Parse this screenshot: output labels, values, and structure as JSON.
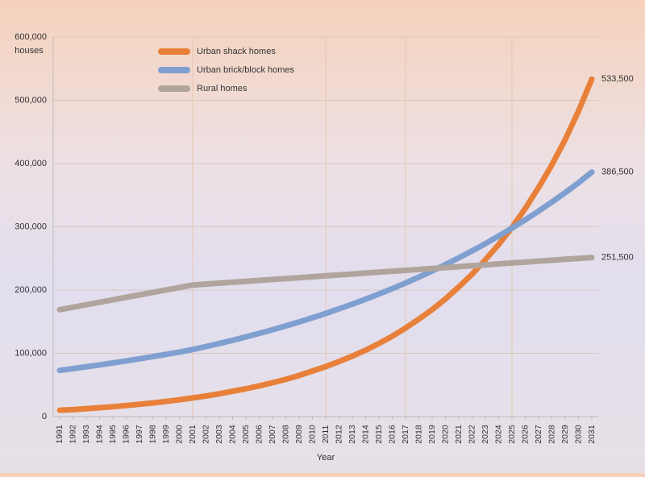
{
  "chart_data": {
    "type": "line",
    "y_axis_label": "houses",
    "x_axis_label": "Year",
    "x": [
      1991,
      1992,
      1993,
      1994,
      1995,
      1996,
      1997,
      1998,
      1999,
      2000,
      2001,
      2002,
      2003,
      2004,
      2005,
      2006,
      2007,
      2008,
      2009,
      2010,
      2011,
      2012,
      2013,
      2014,
      2015,
      2016,
      2017,
      2018,
      2019,
      2020,
      2021,
      2022,
      2023,
      2024,
      2025,
      2026,
      2027,
      2028,
      2029,
      2030,
      2031
    ],
    "xlim": [
      1991,
      2031
    ],
    "x_grid": [
      2001,
      2011,
      2017,
      2025
    ],
    "ylim": [
      0,
      600000
    ],
    "yticks": [
      0,
      {
        "value": 100000,
        "label": "100,000"
      },
      {
        "value": 200000,
        "label": "200,000"
      },
      {
        "value": 300000,
        "label": "300,000"
      },
      {
        "value": 400000,
        "label": "400,000"
      },
      {
        "value": 500000,
        "label": "500,000"
      },
      {
        "value": 600000,
        "label": "600,000"
      }
    ],
    "grid": true,
    "legend": "top-left",
    "series": [
      {
        "name": "Urban shack homes",
        "color": "#e8803a",
        "values": [
          10000,
          11000,
          12500,
          14000,
          15500,
          17500,
          19500,
          21500,
          24000,
          26500,
          29500,
          32500,
          36000,
          40000,
          44000,
          48500,
          53500,
          59000,
          65000,
          72000,
          79000,
          87000,
          95500,
          105000,
          115500,
          127000,
          140000,
          154000,
          169000,
          186000,
          205000,
          225000,
          248000,
          272000,
          299000,
          329000,
          362000,
          398000,
          438000,
          483000,
          533500
        ],
        "value_labels": [
          null,
          null,
          null,
          null,
          null,
          null,
          null,
          null,
          null,
          null,
          null,
          null,
          null,
          null,
          null,
          null,
          null,
          null,
          null,
          null,
          null,
          null,
          null,
          null,
          null,
          null,
          null,
          null,
          null,
          null,
          null,
          null,
          null,
          null,
          null,
          null,
          null,
          null,
          null,
          null,
          "533,500"
        ]
      },
      {
        "name": "Urban brick/block homes",
        "color": "#7f9fd0",
        "values": [
          73000,
          75800,
          78700,
          81700,
          84800,
          88000,
          91300,
          94800,
          98400,
          102100,
          106000,
          110700,
          115600,
          120600,
          126000,
          131500,
          137300,
          143300,
          149600,
          156200,
          163100,
          170300,
          177800,
          185600,
          193800,
          202300,
          211200,
          220500,
          230200,
          240300,
          250900,
          261900,
          273400,
          285500,
          298000,
          311100,
          324800,
          339100,
          354000,
          369600,
          386500
        ],
        "value_labels": [
          null,
          null,
          null,
          null,
          null,
          null,
          null,
          null,
          null,
          null,
          null,
          null,
          null,
          null,
          null,
          null,
          null,
          null,
          null,
          null,
          null,
          null,
          null,
          null,
          null,
          null,
          null,
          null,
          null,
          null,
          null,
          null,
          null,
          null,
          null,
          null,
          null,
          null,
          null,
          null,
          "386,500"
        ]
      },
      {
        "name": "Rural homes",
        "color": "#b0a49c",
        "values": [
          169000,
          172900,
          176800,
          180700,
          184600,
          188500,
          192400,
          196300,
          200200,
          204100,
          208000,
          209450,
          210900,
          212350,
          213800,
          215250,
          216700,
          218150,
          219600,
          221050,
          222500,
          223950,
          225400,
          226850,
          228300,
          229750,
          231200,
          232650,
          234100,
          235550,
          237000,
          238450,
          239900,
          241350,
          242800,
          244250,
          245700,
          247150,
          248600,
          250050,
          251500
        ],
        "value_labels": [
          null,
          null,
          null,
          null,
          null,
          null,
          null,
          null,
          null,
          null,
          null,
          null,
          null,
          null,
          null,
          null,
          null,
          null,
          null,
          null,
          null,
          null,
          null,
          null,
          null,
          null,
          null,
          null,
          null,
          null,
          null,
          null,
          null,
          null,
          null,
          null,
          null,
          null,
          null,
          null,
          "251,500"
        ]
      }
    ]
  }
}
